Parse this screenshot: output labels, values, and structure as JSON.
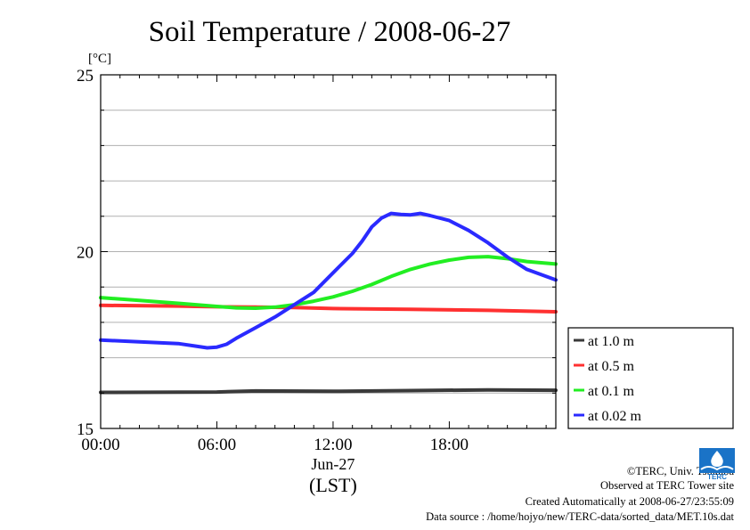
{
  "chart_data": {
    "type": "line",
    "title": "Soil Temperature / 2008-06-27",
    "ylabel": "[°C]",
    "xlabel": "(LST)",
    "x_sublabel": "Jun-27",
    "ylim": [
      15,
      25
    ],
    "xlim_hours": [
      0,
      23.5
    ],
    "yticks": [
      "15",
      "20",
      "25"
    ],
    "xticks": [
      {
        "hour": 0,
        "label": "00:00"
      },
      {
        "hour": 6,
        "label": "06:00"
      },
      {
        "hour": 12,
        "label": "12:00"
      },
      {
        "hour": 18,
        "label": "18:00"
      }
    ],
    "grid": true,
    "legend_position": "right",
    "series": [
      {
        "name": "at 1.0 m",
        "color": "#3a3a3a",
        "x": [
          0,
          6,
          8,
          12,
          16,
          20,
          23.5
        ],
        "values": [
          16.02,
          16.03,
          16.06,
          16.05,
          16.07,
          16.09,
          16.08
        ]
      },
      {
        "name": "at 0.5 m",
        "color": "#ff3030",
        "x": [
          0,
          4,
          6,
          8,
          10,
          12,
          16,
          20,
          23.5
        ],
        "values": [
          18.48,
          18.46,
          18.44,
          18.43,
          18.42,
          18.39,
          18.37,
          18.34,
          18.3
        ]
      },
      {
        "name": "at 0.1 m",
        "color": "#22ee22",
        "x": [
          0,
          2,
          4,
          6,
          7,
          8,
          9,
          10,
          11,
          12,
          13,
          14,
          15,
          16,
          17,
          18,
          19,
          20,
          21,
          22,
          23.5
        ],
        "values": [
          18.7,
          18.62,
          18.54,
          18.45,
          18.41,
          18.4,
          18.43,
          18.5,
          18.6,
          18.72,
          18.88,
          19.07,
          19.3,
          19.5,
          19.65,
          19.76,
          19.84,
          19.86,
          19.8,
          19.72,
          19.65
        ]
      },
      {
        "name": "at 0.02 m",
        "color": "#2a2aff",
        "x": [
          0,
          2,
          4,
          5,
          5.5,
          6,
          6.5,
          7,
          8,
          9,
          10,
          11,
          12,
          13,
          13.5,
          14,
          14.5,
          15,
          15.5,
          16,
          16.5,
          17,
          18,
          19,
          20,
          21,
          22,
          23.5
        ],
        "values": [
          17.5,
          17.45,
          17.4,
          17.32,
          17.28,
          17.3,
          17.38,
          17.55,
          17.85,
          18.15,
          18.5,
          18.85,
          19.4,
          19.95,
          20.3,
          20.7,
          20.95,
          21.08,
          21.05,
          21.04,
          21.08,
          21.02,
          20.88,
          20.6,
          20.25,
          19.85,
          19.5,
          19.2
        ]
      }
    ]
  },
  "credits": {
    "copyright": "©TERC, Univ. Tsukuba",
    "site": "Observed at TERC Tower site",
    "created": "Created Automatically at 2008-06-27/23:55:09",
    "source": "Data source : /home/hojyo/new/TERC-data/sorted_data/MET.10s.dat"
  },
  "logo": {
    "text": "TERC",
    "icon": "terc-logo-icon",
    "color": "#1a73c7"
  }
}
